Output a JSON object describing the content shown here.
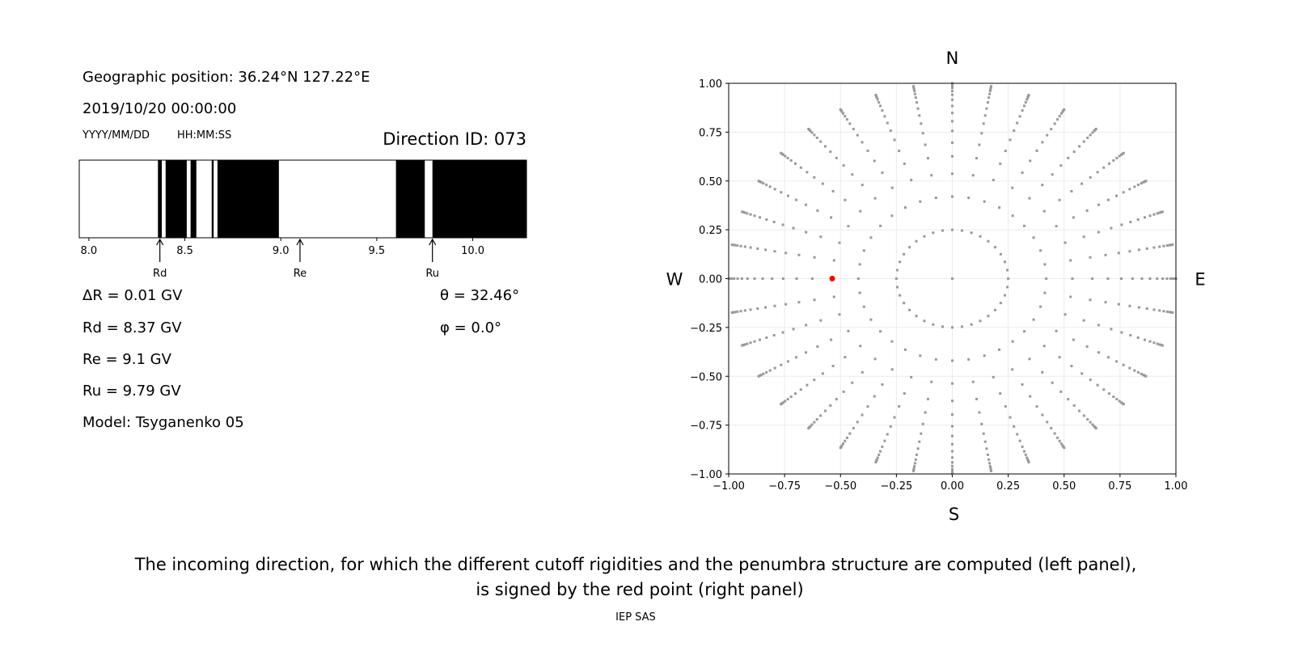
{
  "left_panel": {
    "geo_position": "Geographic position: 36.24°N 127.22°E",
    "datetime": "2019/10/20 00:00:00",
    "date_format": "YYYY/MM/DD",
    "time_format": "HH:MM:SS",
    "direction_id": "Direction ID: 073",
    "delta_r": "ΔR = 0.01 GV",
    "rd": "Rd = 8.37 GV",
    "re": "Re = 9.1 GV",
    "ru": "Ru = 9.79 GV",
    "model": "Model: Tsyganenko 05",
    "theta": "θ = 32.46°",
    "phi": "φ = 0.0°"
  },
  "caption": {
    "line1": "The incoming direction, for which the different cutoff rigidities and the penumbra structure are computed (left panel),",
    "line2": "is signed by the red point (right panel)",
    "credit": "IEP SAS"
  },
  "chart_data": [
    {
      "type": "bar",
      "subtype": "penumbra",
      "xlim": [
        7.95,
        10.28
      ],
      "xticks": [
        "8.0",
        "8.5",
        "9.0",
        "9.5",
        "10.0"
      ],
      "forbidden_intervals_gv": [
        [
          8.36,
          8.38
        ],
        [
          8.4,
          8.51
        ],
        [
          8.53,
          8.56
        ],
        [
          8.64,
          8.65
        ],
        [
          8.67,
          8.99
        ],
        [
          9.6,
          9.75
        ],
        [
          9.79,
          10.28
        ]
      ],
      "markers": [
        {
          "label": "Rd",
          "value": 8.37
        },
        {
          "label": "Re",
          "value": 9.1
        },
        {
          "label": "Ru",
          "value": 9.79
        }
      ],
      "colors": {
        "forbidden": "#000000",
        "allowed": "#ffffff"
      }
    },
    {
      "type": "scatter",
      "xlim": [
        -1,
        1
      ],
      "ylim": [
        -1,
        1
      ],
      "xticks": [
        "−1.00",
        "−0.75",
        "−0.50",
        "−0.25",
        "0.00",
        "0.25",
        "0.50",
        "0.75",
        "1.00"
      ],
      "yticks": [
        "−1.00",
        "−0.75",
        "−0.50",
        "−0.25",
        "0.00",
        "0.25",
        "0.50",
        "0.75",
        "1.00"
      ],
      "grid": true,
      "compass": {
        "n": "N",
        "s": "S",
        "e": "E",
        "w": "W"
      },
      "grid_points": {
        "azimuth_step_deg": 10,
        "spoke_radii": [
          0.42,
          0.537,
          0.626,
          0.696,
          0.756,
          0.806,
          0.848,
          0.884,
          0.916,
          0.941,
          0.96,
          0.976,
          0.987,
          0.994,
          1.0
        ],
        "ring_radius": 0.25,
        "center": true,
        "color": "#999999"
      },
      "highlight": {
        "x": -0.537,
        "y": 0.0,
        "color": "#ff0000"
      }
    }
  ]
}
